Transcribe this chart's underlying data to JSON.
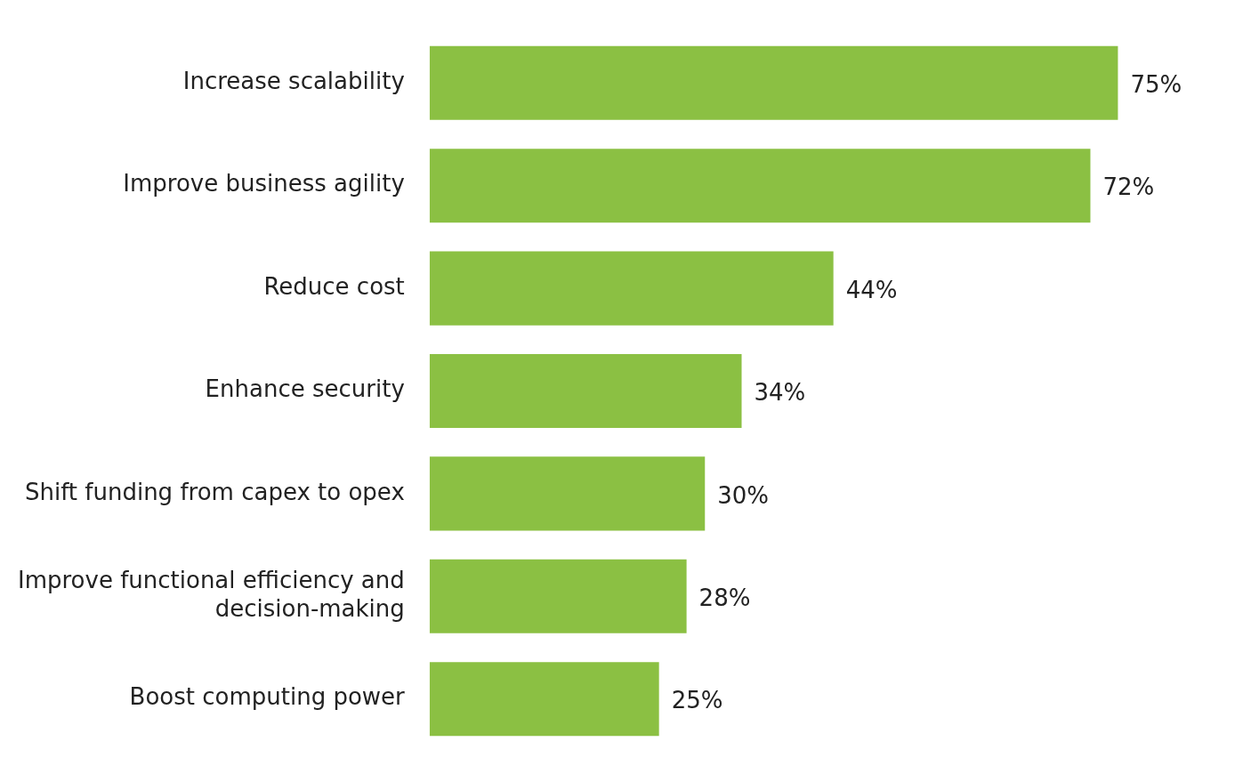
{
  "chart_data": {
    "type": "bar",
    "orientation": "horizontal",
    "categories": [
      "Increase scalability",
      "Improve business agility",
      "Reduce cost",
      "Enhance security",
      "Shift funding from capex to opex",
      "Improve functional efficiency and decision-making",
      "Boost computing power"
    ],
    "values": [
      75,
      72,
      44,
      34,
      30,
      28,
      25
    ],
    "value_labels": [
      "75%",
      "72%",
      "44%",
      "34%",
      "30%",
      "28%",
      "25%"
    ],
    "color": "#8bc043"
  }
}
